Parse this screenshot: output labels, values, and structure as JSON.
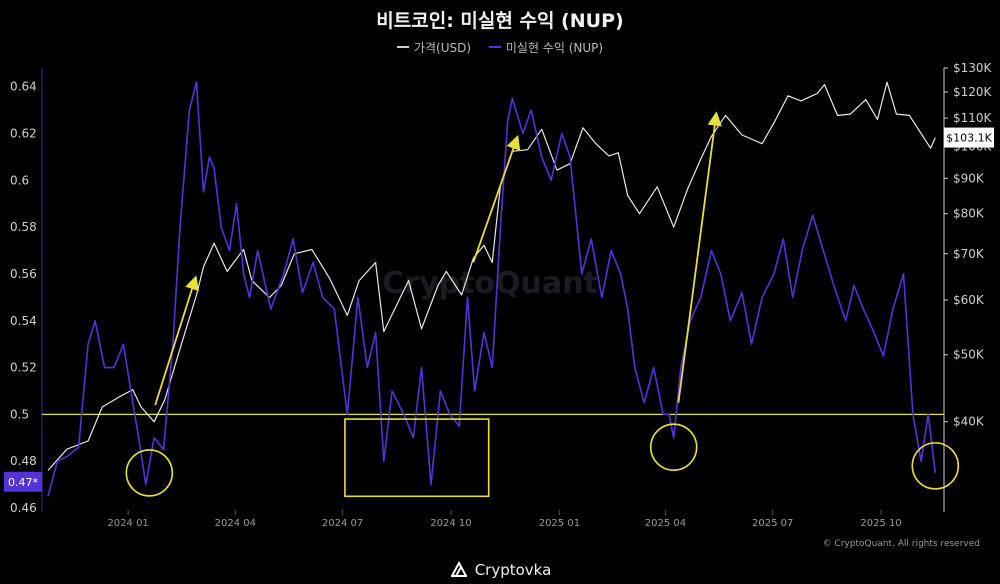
{
  "chart_data": {
    "type": "line",
    "title": "비트코인: 미실현 수익 (NUP)",
    "legend": [
      "가격(USD)",
      "미실현 수익 (NUP)"
    ],
    "legend_placement": "top-center",
    "x_ticks": [
      "2024 01",
      "2024 04",
      "2024 07",
      "2024 10",
      "2025 01",
      "2025 04",
      "2025 07",
      "2025 10"
    ],
    "y_left_ticks": [
      "0.64",
      "0.62",
      "0.6",
      "0.58",
      "0.56",
      "0.54",
      "0.52",
      "0.5",
      "0.48",
      "0.46"
    ],
    "y_left_range": [
      0.46,
      0.648
    ],
    "y_right_ticks": [
      "$130K",
      "$120K",
      "$110K",
      "$100K",
      "$90K",
      "$80K",
      "$70K",
      "$60K",
      "$50K",
      "$40K"
    ],
    "y_right_scale": "log",
    "y_right_range": [
      30000,
      130000
    ],
    "x_range": [
      "2023-10-25",
      "2025-11-20"
    ],
    "reference_line": {
      "value": 0.5,
      "color": "#e8df3a"
    },
    "current_price_label": "$103.1K",
    "current_nup_label": "0.47*",
    "series": [
      {
        "name": "가격(USD)",
        "color": "#e8e8e8",
        "axis": "right",
        "x": [
          "2023-10-25",
          "2023-11-10",
          "2023-11-28",
          "2023-12-10",
          "2023-12-25",
          "2024-01-05",
          "2024-01-12",
          "2024-01-23",
          "2024-02-01",
          "2024-02-14",
          "2024-02-28",
          "2024-03-05",
          "2024-03-14",
          "2024-03-25",
          "2024-04-08",
          "2024-04-15",
          "2024-04-30",
          "2024-05-10",
          "2024-05-21",
          "2024-06-05",
          "2024-06-20",
          "2024-07-05",
          "2024-07-15",
          "2024-07-29",
          "2024-08-05",
          "2024-08-20",
          "2024-08-26",
          "2024-09-06",
          "2024-09-20",
          "2024-09-27",
          "2024-10-10",
          "2024-10-20",
          "2024-10-29",
          "2024-11-05",
          "2024-11-12",
          "2024-11-22",
          "2024-12-05",
          "2024-12-17",
          "2024-12-30",
          "2025-01-10",
          "2025-01-21",
          "2025-02-01",
          "2025-02-12",
          "2025-02-20",
          "2025-02-28",
          "2025-03-10",
          "2025-03-25",
          "2025-04-08",
          "2025-04-20",
          "2025-05-01",
          "2025-05-10",
          "2025-05-22",
          "2025-06-05",
          "2025-06-22",
          "2025-07-03",
          "2025-07-14",
          "2025-07-25",
          "2025-08-08",
          "2025-08-14",
          "2025-08-25",
          "2025-09-05",
          "2025-09-18",
          "2025-09-28",
          "2025-10-06",
          "2025-10-14",
          "2025-10-25",
          "2025-11-04",
          "2025-11-12",
          "2025-11-16"
        ],
        "y": [
          34000,
          36500,
          37500,
          42000,
          43500,
          44500,
          42000,
          40000,
          43000,
          51000,
          61000,
          67000,
          72500,
          66000,
          71000,
          64000,
          60500,
          63000,
          70000,
          71000,
          64500,
          57000,
          64000,
          68000,
          54000,
          61000,
          64000,
          54500,
          63000,
          66000,
          61000,
          69000,
          72000,
          68000,
          88000,
          98500,
          99000,
          106000,
          92500,
          94500,
          106500,
          101000,
          97000,
          98000,
          85000,
          80000,
          87500,
          76500,
          87000,
          96000,
          103500,
          111000,
          104000,
          101000,
          109000,
          118500,
          116500,
          119500,
          123000,
          111000,
          111500,
          117000,
          109500,
          124000,
          111500,
          111000,
          104500,
          99500,
          103100
        ]
      },
      {
        "name": "미실현 수익 (NUP)",
        "color": "#5333d9",
        "axis": "left",
        "x": [
          "2023-10-25",
          "2023-11-02",
          "2023-11-10",
          "2023-11-20",
          "2023-11-28",
          "2023-12-04",
          "2023-12-12",
          "2023-12-20",
          "2023-12-28",
          "2024-01-05",
          "2024-01-10",
          "2024-01-16",
          "2024-01-23",
          "2024-01-31",
          "2024-02-08",
          "2024-02-14",
          "2024-02-22",
          "2024-02-28",
          "2024-03-05",
          "2024-03-10",
          "2024-03-14",
          "2024-03-20",
          "2024-03-27",
          "2024-04-02",
          "2024-04-08",
          "2024-04-13",
          "2024-04-20",
          "2024-05-01",
          "2024-05-12",
          "2024-05-20",
          "2024-05-28",
          "2024-06-06",
          "2024-06-14",
          "2024-06-24",
          "2024-07-05",
          "2024-07-14",
          "2024-07-22",
          "2024-07-29",
          "2024-08-05",
          "2024-08-12",
          "2024-08-22",
          "2024-08-30",
          "2024-09-06",
          "2024-09-14",
          "2024-09-22",
          "2024-09-30",
          "2024-10-08",
          "2024-10-15",
          "2024-10-21",
          "2024-10-29",
          "2024-11-05",
          "2024-11-12",
          "2024-11-18",
          "2024-11-22",
          "2024-12-01",
          "2024-12-08",
          "2024-12-17",
          "2024-12-25",
          "2025-01-03",
          "2025-01-10",
          "2025-01-20",
          "2025-01-28",
          "2025-02-06",
          "2025-02-14",
          "2025-02-22",
          "2025-02-28",
          "2025-03-06",
          "2025-03-14",
          "2025-03-22",
          "2025-03-30",
          "2025-04-04",
          "2025-04-08",
          "2025-04-14",
          "2025-04-22",
          "2025-05-01",
          "2025-05-10",
          "2025-05-18",
          "2025-05-26",
          "2025-06-05",
          "2025-06-13",
          "2025-06-22",
          "2025-07-02",
          "2025-07-10",
          "2025-07-18",
          "2025-07-26",
          "2025-08-04",
          "2025-08-13",
          "2025-08-22",
          "2025-09-01",
          "2025-09-08",
          "2025-09-16",
          "2025-09-25",
          "2025-10-03",
          "2025-10-11",
          "2025-10-20",
          "2025-10-28",
          "2025-11-04",
          "2025-11-10",
          "2025-11-16"
        ],
        "y": [
          0.465,
          0.48,
          0.482,
          0.486,
          0.53,
          0.54,
          0.52,
          0.52,
          0.53,
          0.505,
          0.49,
          0.47,
          0.49,
          0.485,
          0.53,
          0.58,
          0.63,
          0.642,
          0.595,
          0.61,
          0.605,
          0.58,
          0.57,
          0.59,
          0.56,
          0.55,
          0.57,
          0.545,
          0.56,
          0.575,
          0.552,
          0.565,
          0.55,
          0.545,
          0.5,
          0.55,
          0.52,
          0.535,
          0.48,
          0.51,
          0.5,
          0.49,
          0.52,
          0.47,
          0.51,
          0.5,
          0.495,
          0.55,
          0.51,
          0.535,
          0.52,
          0.58,
          0.625,
          0.635,
          0.62,
          0.63,
          0.61,
          0.6,
          0.62,
          0.61,
          0.56,
          0.575,
          0.55,
          0.57,
          0.56,
          0.545,
          0.52,
          0.505,
          0.52,
          0.5,
          0.5,
          0.49,
          0.52,
          0.54,
          0.55,
          0.57,
          0.56,
          0.54,
          0.552,
          0.53,
          0.55,
          0.56,
          0.575,
          0.55,
          0.57,
          0.585,
          0.57,
          0.555,
          0.54,
          0.555,
          0.545,
          0.535,
          0.525,
          0.545,
          0.56,
          0.5,
          0.48,
          0.5,
          0.475
        ]
      }
    ],
    "annotations": {
      "circles": [
        "2024-01-19",
        "2025-04-08",
        "2025-11-16"
      ],
      "rectangle": [
        "2024-07-03",
        "2024-11-02"
      ],
      "arrows": [
        "2024-01-24 → 2024-02-27",
        "2024-10-20 → 2024-11-26",
        "2025-04-12 → 2025-05-14"
      ]
    },
    "watermark": "CryptoQuant",
    "copyright": "© CryptoQuant. All rights reserved"
  },
  "footer": {
    "brand": "Cryptovka"
  },
  "colors": {
    "background": "#000000",
    "price_line": "#e8e8e8",
    "nup_line": "#5333d9",
    "highlight": "#e8df3a"
  }
}
